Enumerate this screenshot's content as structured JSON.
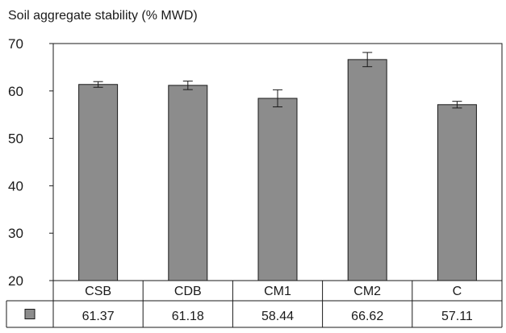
{
  "chart_data": {
    "type": "bar",
    "ylabel": "Soil aggregate stability (% MWD)",
    "categories": [
      "CSB",
      "CDB",
      "CM1",
      "CM2",
      "C"
    ],
    "values": [
      61.37,
      61.18,
      58.44,
      66.62,
      57.11
    ],
    "value_labels": [
      "61.37",
      "61.18",
      "58.44",
      "66.62",
      "57.11"
    ],
    "error": [
      0.6,
      0.9,
      1.8,
      1.5,
      0.7
    ],
    "ylim": [
      20,
      70
    ],
    "yticks": [
      "20",
      "30",
      "40",
      "50",
      "60",
      "70"
    ],
    "grid": false,
    "legend": "data-table-left",
    "data_table": true,
    "colors": {
      "bar": "#8c8c8c",
      "bar_stroke": "#1a1a1a",
      "axis": "#1a1a1a"
    }
  }
}
